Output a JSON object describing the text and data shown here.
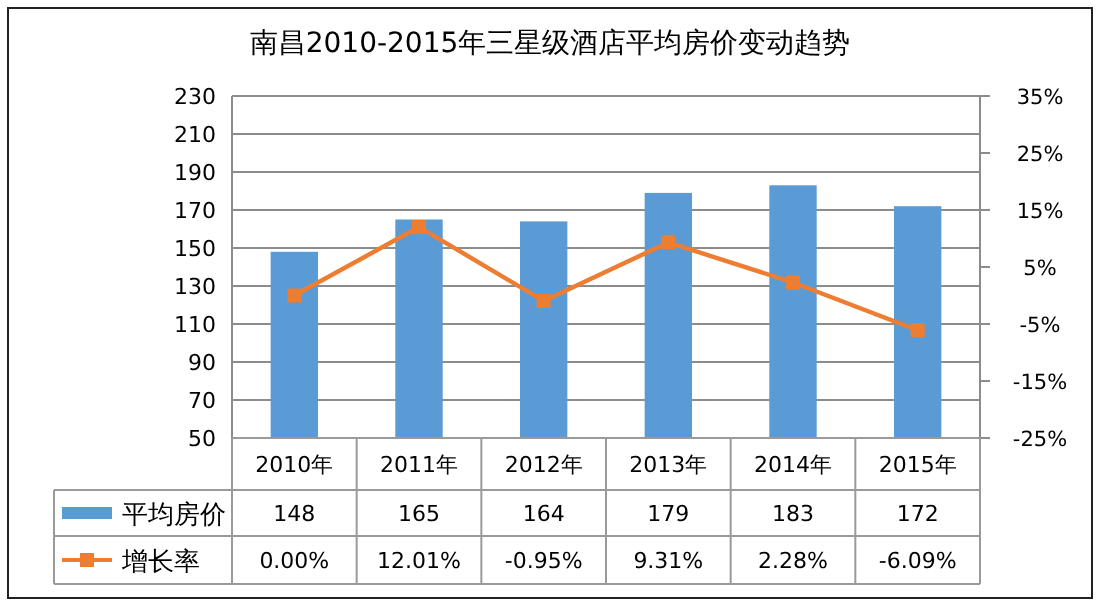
{
  "chart_data": {
    "type": "bar",
    "title": "南昌2010-2015年三星级酒店平均房价变动趋势",
    "categories": [
      "2010年",
      "2011年",
      "2012年",
      "2013年",
      "2014年",
      "2015年"
    ],
    "series": [
      {
        "name": "平均房价",
        "color": "#5b9bd5",
        "values": [
          148,
          165,
          164,
          179,
          183,
          172
        ],
        "value_labels": [
          "148",
          "165",
          "164",
          "179",
          "183",
          "172"
        ]
      },
      {
        "name": "增长率",
        "type": "line",
        "axis": "y2",
        "color": "#ed7d31",
        "marker": "square",
        "values": [
          0.0,
          12.01,
          -0.95,
          9.31,
          2.28,
          -6.09
        ],
        "value_labels": [
          "0.00%",
          "12.01%",
          "-0.95%",
          "9.31%",
          "2.28%",
          "-6.09%"
        ]
      }
    ],
    "ylim": [
      50,
      230
    ],
    "yticks": [
      50,
      70,
      90,
      110,
      130,
      150,
      170,
      190,
      210,
      230
    ],
    "y2lim": [
      -25,
      35
    ],
    "y2ticks": [
      {
        "value": -25,
        "label": "-25%"
      },
      {
        "value": -15,
        "label": "-15%"
      },
      {
        "value": -5,
        "label": "-5%"
      },
      {
        "value": 5,
        "label": "5%"
      },
      {
        "value": 15,
        "label": "15%"
      },
      {
        "value": 25,
        "label": "25%"
      },
      {
        "value": 35,
        "label": "35%"
      }
    ],
    "grid": "y",
    "legend": "bottom"
  }
}
